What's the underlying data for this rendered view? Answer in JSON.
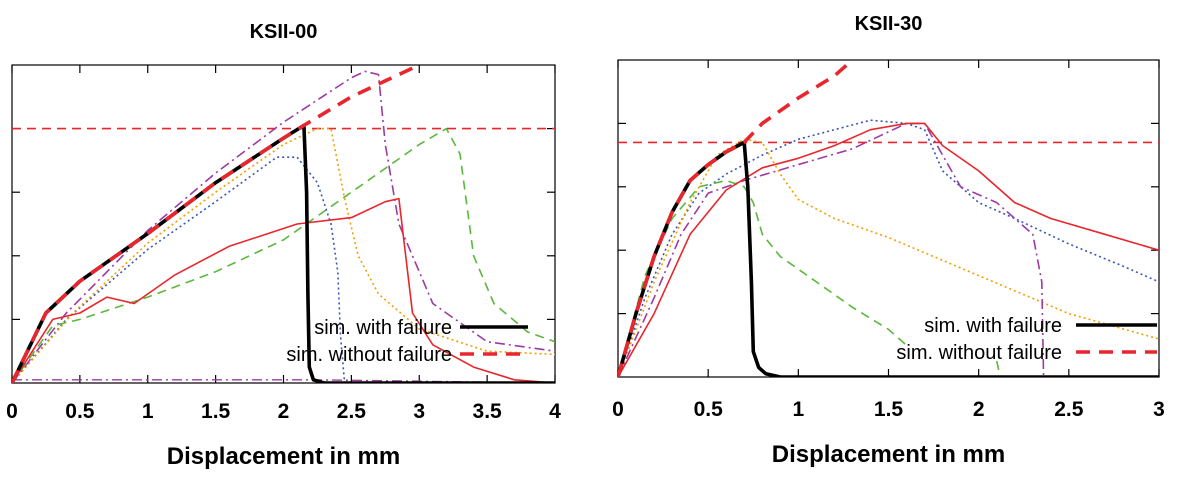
{
  "chart_data": [
    {
      "type": "line",
      "title": "KSII-00",
      "xlabel": "Displacement in mm",
      "ylabel": "",
      "xlim": [
        0,
        4
      ],
      "xticks": [
        "0",
        "0.5",
        "1",
        "1.5",
        "2",
        "2.5",
        "3",
        "3.5",
        "4"
      ],
      "ylim": [
        0,
        1
      ],
      "legend": {
        "position": "bottom-right",
        "entries": [
          "sim. with failure",
          "sim. without failure"
        ]
      },
      "reference_line": {
        "y": 0.8,
        "color": "#e8262d",
        "style": "dashed"
      },
      "series": [
        {
          "name": "sim. with failure",
          "color": "#000000",
          "style": "solid-thick",
          "points": [
            [
              0,
              0
            ],
            [
              0.25,
              0.22
            ],
            [
              0.5,
              0.32
            ],
            [
              1,
              0.47
            ],
            [
              1.5,
              0.63
            ],
            [
              2,
              0.77
            ],
            [
              2.15,
              0.81
            ],
            [
              2.17,
              0.6
            ],
            [
              2.18,
              0.28
            ],
            [
              2.19,
              0.05
            ],
            [
              2.22,
              0.01
            ],
            [
              2.3,
              0
            ],
            [
              4,
              0
            ]
          ]
        },
        {
          "name": "sim. without failure",
          "color": "#e8262d",
          "style": "dashed-thick",
          "points": [
            [
              0,
              0
            ],
            [
              0.25,
              0.22
            ],
            [
              0.5,
              0.32
            ],
            [
              1,
              0.47
            ],
            [
              1.5,
              0.63
            ],
            [
              2,
              0.77
            ],
            [
              2.15,
              0.81
            ],
            [
              2.5,
              0.9
            ],
            [
              2.8,
              0.96
            ],
            [
              3,
              1.0
            ]
          ]
        },
        {
          "color": "#3a55b5",
          "style": "dotted",
          "points": [
            [
              0,
              0
            ],
            [
              0.4,
              0.2
            ],
            [
              1,
              0.42
            ],
            [
              1.5,
              0.57
            ],
            [
              1.95,
              0.71
            ],
            [
              2.1,
              0.71
            ],
            [
              2.25,
              0.63
            ],
            [
              2.35,
              0.5
            ],
            [
              2.4,
              0.35
            ],
            [
              2.42,
              0.15
            ],
            [
              2.45,
              0
            ]
          ]
        },
        {
          "color": "#f0a000",
          "style": "dotted",
          "points": [
            [
              0,
              0
            ],
            [
              0.45,
              0.22
            ],
            [
              1,
              0.44
            ],
            [
              1.5,
              0.6
            ],
            [
              2,
              0.75
            ],
            [
              2.25,
              0.8
            ],
            [
              2.35,
              0.8
            ],
            [
              2.45,
              0.58
            ],
            [
              2.55,
              0.4
            ],
            [
              2.7,
              0.28
            ],
            [
              3,
              0.17
            ],
            [
              3.5,
              0.1
            ],
            [
              4,
              0.09
            ]
          ]
        },
        {
          "color": "#9b3ba3",
          "style": "dashdot",
          "points": [
            [
              0,
              0
            ],
            [
              0.4,
              0.22
            ],
            [
              1,
              0.48
            ],
            [
              1.5,
              0.66
            ],
            [
              2,
              0.82
            ],
            [
              2.5,
              0.96
            ],
            [
              2.6,
              0.98
            ],
            [
              2.7,
              0.97
            ],
            [
              2.75,
              0.75
            ],
            [
              2.85,
              0.5
            ],
            [
              3.1,
              0.25
            ],
            [
              3.5,
              0.13
            ],
            [
              4,
              0.1
            ]
          ]
        },
        {
          "color": "#5ab83c",
          "style": "dashed",
          "points": [
            [
              0,
              0
            ],
            [
              0.3,
              0.18
            ],
            [
              0.5,
              0.2
            ],
            [
              1,
              0.27
            ],
            [
              1.5,
              0.35
            ],
            [
              2,
              0.45
            ],
            [
              2.5,
              0.6
            ],
            [
              3,
              0.75
            ],
            [
              3.2,
              0.8
            ],
            [
              3.3,
              0.72
            ],
            [
              3.4,
              0.4
            ],
            [
              3.55,
              0.25
            ],
            [
              3.8,
              0.16
            ],
            [
              4,
              0.13
            ]
          ]
        },
        {
          "color": "#e8262d",
          "style": "solid",
          "points": [
            [
              0,
              0
            ],
            [
              0.3,
              0.2
            ],
            [
              0.5,
              0.22
            ],
            [
              0.7,
              0.27
            ],
            [
              0.9,
              0.25
            ],
            [
              1.2,
              0.34
            ],
            [
              1.6,
              0.43
            ],
            [
              2.1,
              0.5
            ],
            [
              2.5,
              0.52
            ],
            [
              2.75,
              0.57
            ],
            [
              2.85,
              0.58
            ],
            [
              2.9,
              0.4
            ],
            [
              2.95,
              0.22
            ],
            [
              3.1,
              0.12
            ],
            [
              3.4,
              0.05
            ],
            [
              3.7,
              0.01
            ],
            [
              4,
              0
            ]
          ]
        },
        {
          "color": "#9b3ba3",
          "style": "dashdot-thin",
          "points": [
            [
              0,
              0.01
            ],
            [
              2.2,
              0.01
            ],
            [
              4,
              0
            ]
          ]
        }
      ]
    },
    {
      "type": "line",
      "title": "KSII-30",
      "xlabel": "Displacement in mm",
      "ylabel": "",
      "xlim": [
        0,
        3
      ],
      "xticks": [
        "0",
        "0.5",
        "1",
        "1.5",
        "2",
        "2.5",
        "3"
      ],
      "ylim": [
        0,
        1
      ],
      "legend": {
        "position": "bottom-right",
        "entries": [
          "sim. with failure",
          "sim. without failure"
        ]
      },
      "reference_line": {
        "y": 0.74,
        "color": "#e8262d",
        "style": "dashed"
      },
      "series": [
        {
          "name": "sim. with failure",
          "color": "#000000",
          "style": "solid-thick",
          "points": [
            [
              0,
              0
            ],
            [
              0.1,
              0.2
            ],
            [
              0.2,
              0.38
            ],
            [
              0.3,
              0.52
            ],
            [
              0.4,
              0.62
            ],
            [
              0.5,
              0.67
            ],
            [
              0.6,
              0.71
            ],
            [
              0.7,
              0.74
            ],
            [
              0.72,
              0.6
            ],
            [
              0.74,
              0.3
            ],
            [
              0.75,
              0.08
            ],
            [
              0.78,
              0.03
            ],
            [
              0.82,
              0.01
            ],
            [
              0.9,
              0
            ],
            [
              3,
              0
            ]
          ]
        },
        {
          "name": "sim. without failure",
          "color": "#e8262d",
          "style": "dashed-thick",
          "points": [
            [
              0,
              0
            ],
            [
              0.1,
              0.2
            ],
            [
              0.2,
              0.38
            ],
            [
              0.3,
              0.52
            ],
            [
              0.4,
              0.62
            ],
            [
              0.5,
              0.67
            ],
            [
              0.6,
              0.71
            ],
            [
              0.7,
              0.74
            ],
            [
              0.8,
              0.8
            ],
            [
              1,
              0.88
            ],
            [
              1.2,
              0.95
            ],
            [
              1.3,
              1.0
            ]
          ]
        },
        {
          "color": "#3a55b5",
          "style": "dotted",
          "points": [
            [
              0,
              0
            ],
            [
              0.15,
              0.25
            ],
            [
              0.3,
              0.45
            ],
            [
              0.45,
              0.58
            ],
            [
              0.6,
              0.64
            ],
            [
              0.8,
              0.7
            ],
            [
              1,
              0.75
            ],
            [
              1.2,
              0.78
            ],
            [
              1.4,
              0.81
            ],
            [
              1.6,
              0.8
            ],
            [
              1.7,
              0.78
            ],
            [
              1.8,
              0.65
            ],
            [
              2,
              0.55
            ],
            [
              2.2,
              0.5
            ],
            [
              2.5,
              0.42
            ],
            [
              2.8,
              0.35
            ],
            [
              3,
              0.3
            ]
          ]
        },
        {
          "color": "#f0a000",
          "style": "dotted",
          "points": [
            [
              0,
              0
            ],
            [
              0.2,
              0.3
            ],
            [
              0.4,
              0.55
            ],
            [
              0.55,
              0.7
            ],
            [
              0.7,
              0.75
            ],
            [
              0.8,
              0.74
            ],
            [
              0.9,
              0.64
            ],
            [
              1,
              0.56
            ],
            [
              1.2,
              0.5
            ],
            [
              1.5,
              0.44
            ],
            [
              2,
              0.32
            ],
            [
              2.5,
              0.2
            ],
            [
              3,
              0.12
            ]
          ]
        },
        {
          "color": "#9b3ba3",
          "style": "dashdot",
          "points": [
            [
              0,
              0
            ],
            [
              0.2,
              0.25
            ],
            [
              0.35,
              0.45
            ],
            [
              0.5,
              0.58
            ],
            [
              0.7,
              0.62
            ],
            [
              1,
              0.67
            ],
            [
              1.3,
              0.72
            ],
            [
              1.6,
              0.8
            ],
            [
              1.7,
              0.8
            ],
            [
              1.8,
              0.7
            ],
            [
              1.9,
              0.6
            ],
            [
              2.1,
              0.55
            ],
            [
              2.3,
              0.45
            ],
            [
              2.35,
              0.3
            ],
            [
              2.36,
              0
            ]
          ]
        },
        {
          "color": "#5ab83c",
          "style": "dashed",
          "points": [
            [
              0,
              0
            ],
            [
              0.15,
              0.32
            ],
            [
              0.3,
              0.5
            ],
            [
              0.45,
              0.6
            ],
            [
              0.6,
              0.62
            ],
            [
              0.7,
              0.6
            ],
            [
              0.75,
              0.55
            ],
            [
              0.8,
              0.45
            ],
            [
              0.9,
              0.38
            ],
            [
              1.1,
              0.3
            ],
            [
              1.3,
              0.22
            ],
            [
              1.5,
              0.15
            ],
            [
              1.6,
              0.1
            ]
          ]
        },
        {
          "color": "#5ab83c",
          "style": "dashed",
          "points": [
            [
              2.1,
              0.05
            ],
            [
              2.12,
              0
            ]
          ]
        },
        {
          "color": "#e8262d",
          "style": "solid",
          "points": [
            [
              0,
              0
            ],
            [
              0.2,
              0.2
            ],
            [
              0.4,
              0.45
            ],
            [
              0.6,
              0.59
            ],
            [
              0.8,
              0.66
            ],
            [
              1,
              0.69
            ],
            [
              1.2,
              0.73
            ],
            [
              1.4,
              0.78
            ],
            [
              1.6,
              0.8
            ],
            [
              1.7,
              0.8
            ],
            [
              1.8,
              0.73
            ],
            [
              2,
              0.65
            ],
            [
              2.2,
              0.55
            ],
            [
              2.4,
              0.5
            ],
            [
              2.7,
              0.45
            ],
            [
              3,
              0.4
            ]
          ]
        }
      ]
    }
  ]
}
